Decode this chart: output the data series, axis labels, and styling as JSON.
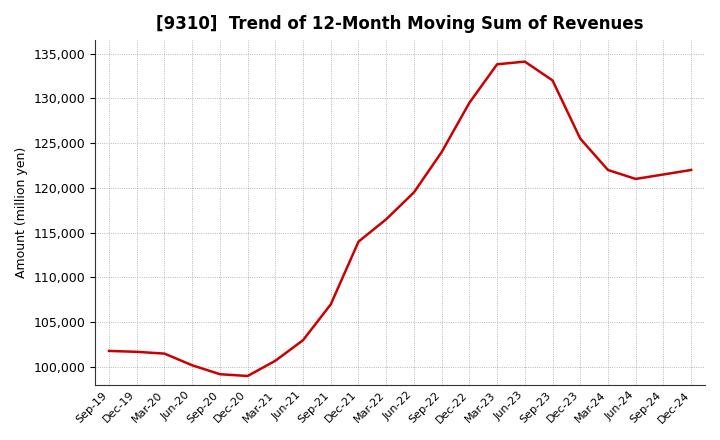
{
  "title": "[9310]  Trend of 12-Month Moving Sum of Revenues",
  "ylabel": "Amount (million yen)",
  "line_color": "#cc0000",
  "background_color": "#ffffff",
  "plot_bg_color": "#ffffff",
  "grid_color": "#999999",
  "ylim": [
    98000,
    136500
  ],
  "yticks": [
    100000,
    105000,
    110000,
    115000,
    120000,
    125000,
    130000,
    135000
  ],
  "labels": [
    "Sep-19",
    "Dec-19",
    "Mar-20",
    "Jun-20",
    "Sep-20",
    "Dec-20",
    "Mar-21",
    "Jun-21",
    "Sep-21",
    "Dec-21",
    "Mar-22",
    "Jun-22",
    "Sep-22",
    "Dec-22",
    "Mar-23",
    "Jun-23",
    "Sep-23",
    "Dec-23",
    "Mar-24",
    "Jun-24",
    "Sep-24",
    "Dec-24"
  ],
  "values": [
    101800,
    101700,
    101500,
    100200,
    99200,
    99000,
    100700,
    103000,
    107000,
    114000,
    116500,
    119500,
    124000,
    129500,
    133800,
    134100,
    132000,
    125500,
    122000,
    121000,
    121500,
    122000
  ],
  "title_fontsize": 12,
  "ylabel_fontsize": 9,
  "ytick_fontsize": 9,
  "xtick_fontsize": 8
}
